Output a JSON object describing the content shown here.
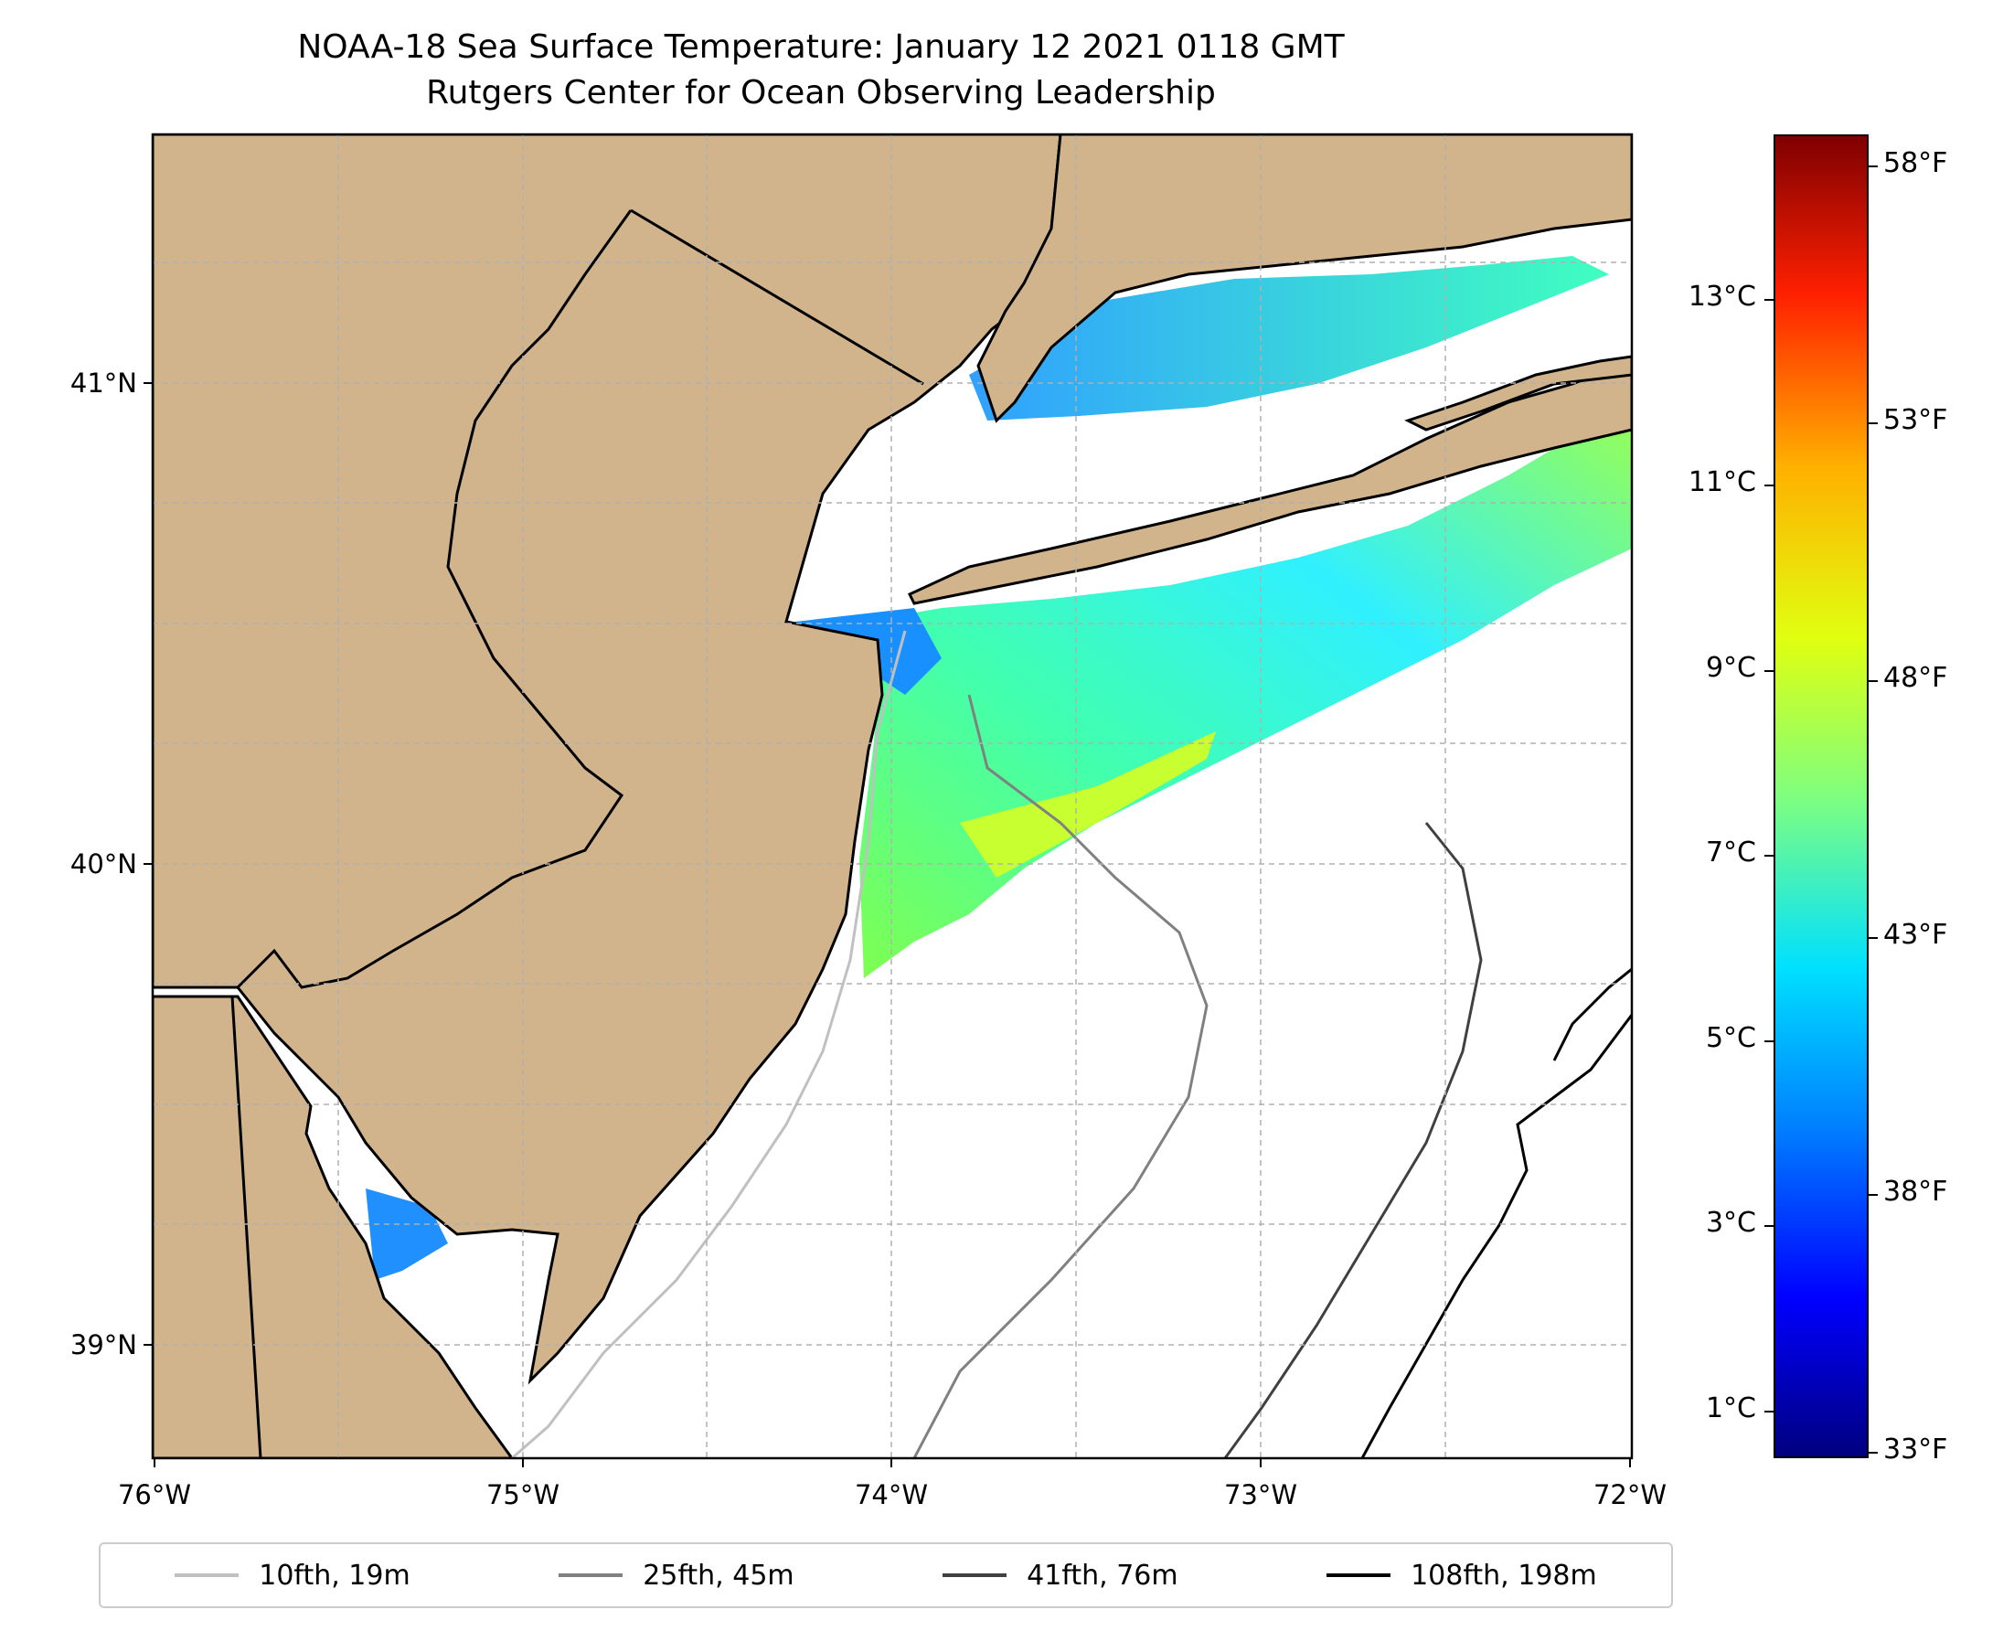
{
  "title": {
    "line1": "NOAA-18 Sea Surface Temperature: January 12 2021 0118 GMT",
    "line2": "Rutgers Center for Ocean Observing Leadership"
  },
  "colors": {
    "land": "#d2b48c",
    "ocean": "#ffffff",
    "grid": "#b0b0b0",
    "iso_10": "#c0c0c0",
    "iso_25": "#808080",
    "iso_41": "#404040",
    "iso_108": "#000000"
  },
  "axes": {
    "x_ticks": [
      "76°W",
      "75°W",
      "74°W",
      "73°W",
      "72°W"
    ],
    "y_ticks": [
      "41°N",
      "40°N",
      "39°N"
    ]
  },
  "legend": [
    {
      "label": "10fth, 19m",
      "color": "#c0c0c0"
    },
    {
      "label": "25fth, 45m",
      "color": "#808080"
    },
    {
      "label": "41fth, 76m",
      "color": "#404040"
    },
    {
      "label": "108fth, 198m",
      "color": "#000000"
    }
  ],
  "colorbar": {
    "celsius": [
      "13°C",
      "11°C",
      "9°C",
      "7°C",
      "5°C",
      "3°C",
      "1°C"
    ],
    "fahrenheit": [
      "58°F",
      "53°F",
      "48°F",
      "43°F",
      "38°F",
      "33°F"
    ],
    "colormap": "jet"
  }
}
